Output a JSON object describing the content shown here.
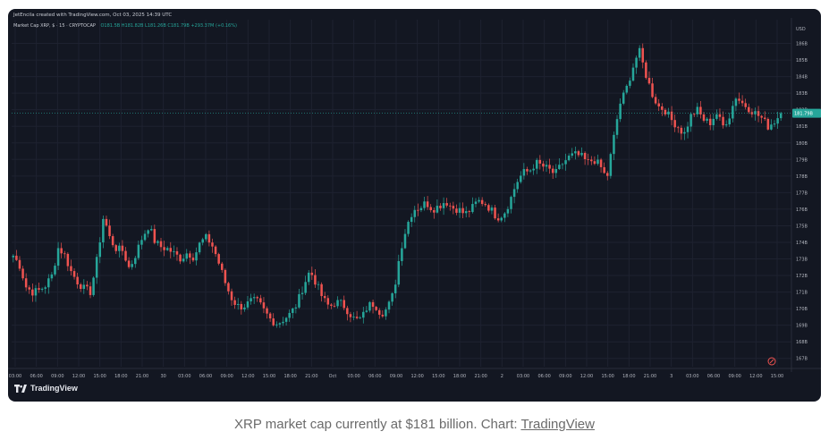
{
  "header": {
    "created_text": "JetEncila created with TradingView.com, Oct 03, 2025 14:39 UTC",
    "symbol_text": "Market Cap XRP, $ · 15 · CRYPTOCAP",
    "ohlc_text": "O181.5B H181.82B L181.26B C181.79B +293.37M (+0.16%)"
  },
  "caption": {
    "text": "XRP market cap currently at $181 billion. Chart: ",
    "link": "TradingView"
  },
  "brand": {
    "name": "TradingView",
    "logo_icon": "tradingview-logo-icon"
  },
  "price_badge": "181.79B",
  "colors": {
    "background": "#131722",
    "up": "#26a69a",
    "down": "#ef5350",
    "grid": "#1e2230",
    "axis_text": "#b2b5be"
  },
  "chart_data": {
    "type": "candlestick",
    "title": "Market Cap XRP, $ · 15 · CRYPTOCAP",
    "xlabel": "",
    "ylabel": "",
    "ylim": [
      166.5,
      187
    ],
    "y_unit_label": "USD",
    "y_ticks": [
      "186B",
      "185B",
      "184B",
      "183B",
      "182B",
      "181B",
      "180B",
      "179B",
      "178B",
      "177B",
      "176B",
      "175B",
      "174B",
      "173B",
      "172B",
      "171B",
      "170B",
      "169B",
      "168B",
      "167B"
    ],
    "x_ticks": [
      "03:00",
      "06:00",
      "09:00",
      "12:00",
      "15:00",
      "18:00",
      "21:00",
      "30",
      "03:00",
      "06:00",
      "09:00",
      "12:00",
      "15:00",
      "18:00",
      "21:00",
      "Oct",
      "03:00",
      "06:00",
      "09:00",
      "12:00",
      "15:00",
      "18:00",
      "21:00",
      "2",
      "03:00",
      "06:00",
      "09:00",
      "12:00",
      "15:00",
      "18:00",
      "21:00",
      "3",
      "03:00",
      "06:00",
      "09:00",
      "12:00",
      "15:00"
    ],
    "grid": true,
    "last_value": 181.79,
    "price_path": [
      [
        0,
        173.2
      ],
      [
        2,
        172.6
      ],
      [
        4,
        171.3
      ],
      [
        6,
        171.0
      ],
      [
        8,
        171.1
      ],
      [
        10,
        171.4
      ],
      [
        12,
        172.0
      ],
      [
        14,
        173.7
      ],
      [
        16,
        173.2
      ],
      [
        18,
        172.2
      ],
      [
        20,
        171.6
      ],
      [
        22,
        171.2
      ],
      [
        24,
        171.0
      ],
      [
        26,
        173.0
      ],
      [
        28,
        175.6
      ],
      [
        30,
        174.2
      ],
      [
        32,
        173.6
      ],
      [
        34,
        173.5
      ],
      [
        36,
        172.4
      ],
      [
        38,
        173.3
      ],
      [
        40,
        174.3
      ],
      [
        42,
        175.0
      ],
      [
        44,
        174.0
      ],
      [
        46,
        173.7
      ],
      [
        48,
        173.6
      ],
      [
        50,
        173.3
      ],
      [
        52,
        173.0
      ],
      [
        54,
        173.4
      ],
      [
        56,
        173.1
      ],
      [
        58,
        174.0
      ],
      [
        60,
        174.3
      ],
      [
        62,
        173.7
      ],
      [
        64,
        172.6
      ],
      [
        66,
        171.4
      ],
      [
        68,
        170.5
      ],
      [
        70,
        170.1
      ],
      [
        72,
        170.2
      ],
      [
        74,
        170.5
      ],
      [
        76,
        170.4
      ],
      [
        78,
        169.8
      ],
      [
        80,
        169.3
      ],
      [
        82,
        169.1
      ],
      [
        84,
        169.4
      ],
      [
        86,
        169.7
      ],
      [
        88,
        170.3
      ],
      [
        90,
        171.4
      ],
      [
        92,
        172.3
      ],
      [
        94,
        171.5
      ],
      [
        96,
        170.6
      ],
      [
        98,
        170.1
      ],
      [
        100,
        170.4
      ],
      [
        102,
        170.3
      ],
      [
        104,
        169.8
      ],
      [
        106,
        169.3
      ],
      [
        108,
        169.4
      ],
      [
        110,
        170.2
      ],
      [
        112,
        170.3
      ],
      [
        114,
        169.7
      ],
      [
        116,
        170.0
      ],
      [
        118,
        171.0
      ],
      [
        120,
        173.5
      ],
      [
        122,
        175.0
      ],
      [
        124,
        176.0
      ],
      [
        126,
        176.1
      ],
      [
        128,
        176.4
      ],
      [
        130,
        176.0
      ],
      [
        132,
        176.2
      ],
      [
        134,
        176.5
      ],
      [
        136,
        176.1
      ],
      [
        138,
        176.0
      ],
      [
        140,
        175.7
      ],
      [
        142,
        176.0
      ],
      [
        144,
        176.5
      ],
      [
        146,
        176.4
      ],
      [
        148,
        176.0
      ],
      [
        150,
        175.5
      ],
      [
        152,
        175.7
      ],
      [
        154,
        176.5
      ],
      [
        156,
        177.6
      ],
      [
        158,
        178.2
      ],
      [
        160,
        178.3
      ],
      [
        162,
        178.8
      ],
      [
        164,
        178.6
      ],
      [
        166,
        178.4
      ],
      [
        168,
        178.1
      ],
      [
        170,
        178.7
      ],
      [
        172,
        179.1
      ],
      [
        174,
        179.3
      ],
      [
        176,
        179.2
      ],
      [
        178,
        178.8
      ],
      [
        180,
        179.0
      ],
      [
        182,
        178.6
      ],
      [
        184,
        177.8
      ],
      [
        186,
        180.1
      ],
      [
        188,
        182.3
      ],
      [
        190,
        183.2
      ],
      [
        192,
        184.5
      ],
      [
        194,
        185.6
      ],
      [
        196,
        184.2
      ],
      [
        198,
        183.0
      ],
      [
        200,
        182.2
      ],
      [
        202,
        182.0
      ],
      [
        204,
        181.4
      ],
      [
        206,
        181.0
      ],
      [
        208,
        180.5
      ],
      [
        210,
        181.6
      ],
      [
        212,
        182.0
      ],
      [
        214,
        181.4
      ],
      [
        216,
        181.2
      ],
      [
        218,
        181.8
      ],
      [
        220,
        181.0
      ],
      [
        222,
        181.6
      ],
      [
        224,
        182.8
      ],
      [
        226,
        182.4
      ],
      [
        228,
        182.1
      ],
      [
        230,
        181.8
      ],
      [
        232,
        181.5
      ],
      [
        234,
        181.0
      ],
      [
        236,
        181.3
      ],
      [
        238,
        181.79
      ]
    ],
    "candles_total": 240
  }
}
